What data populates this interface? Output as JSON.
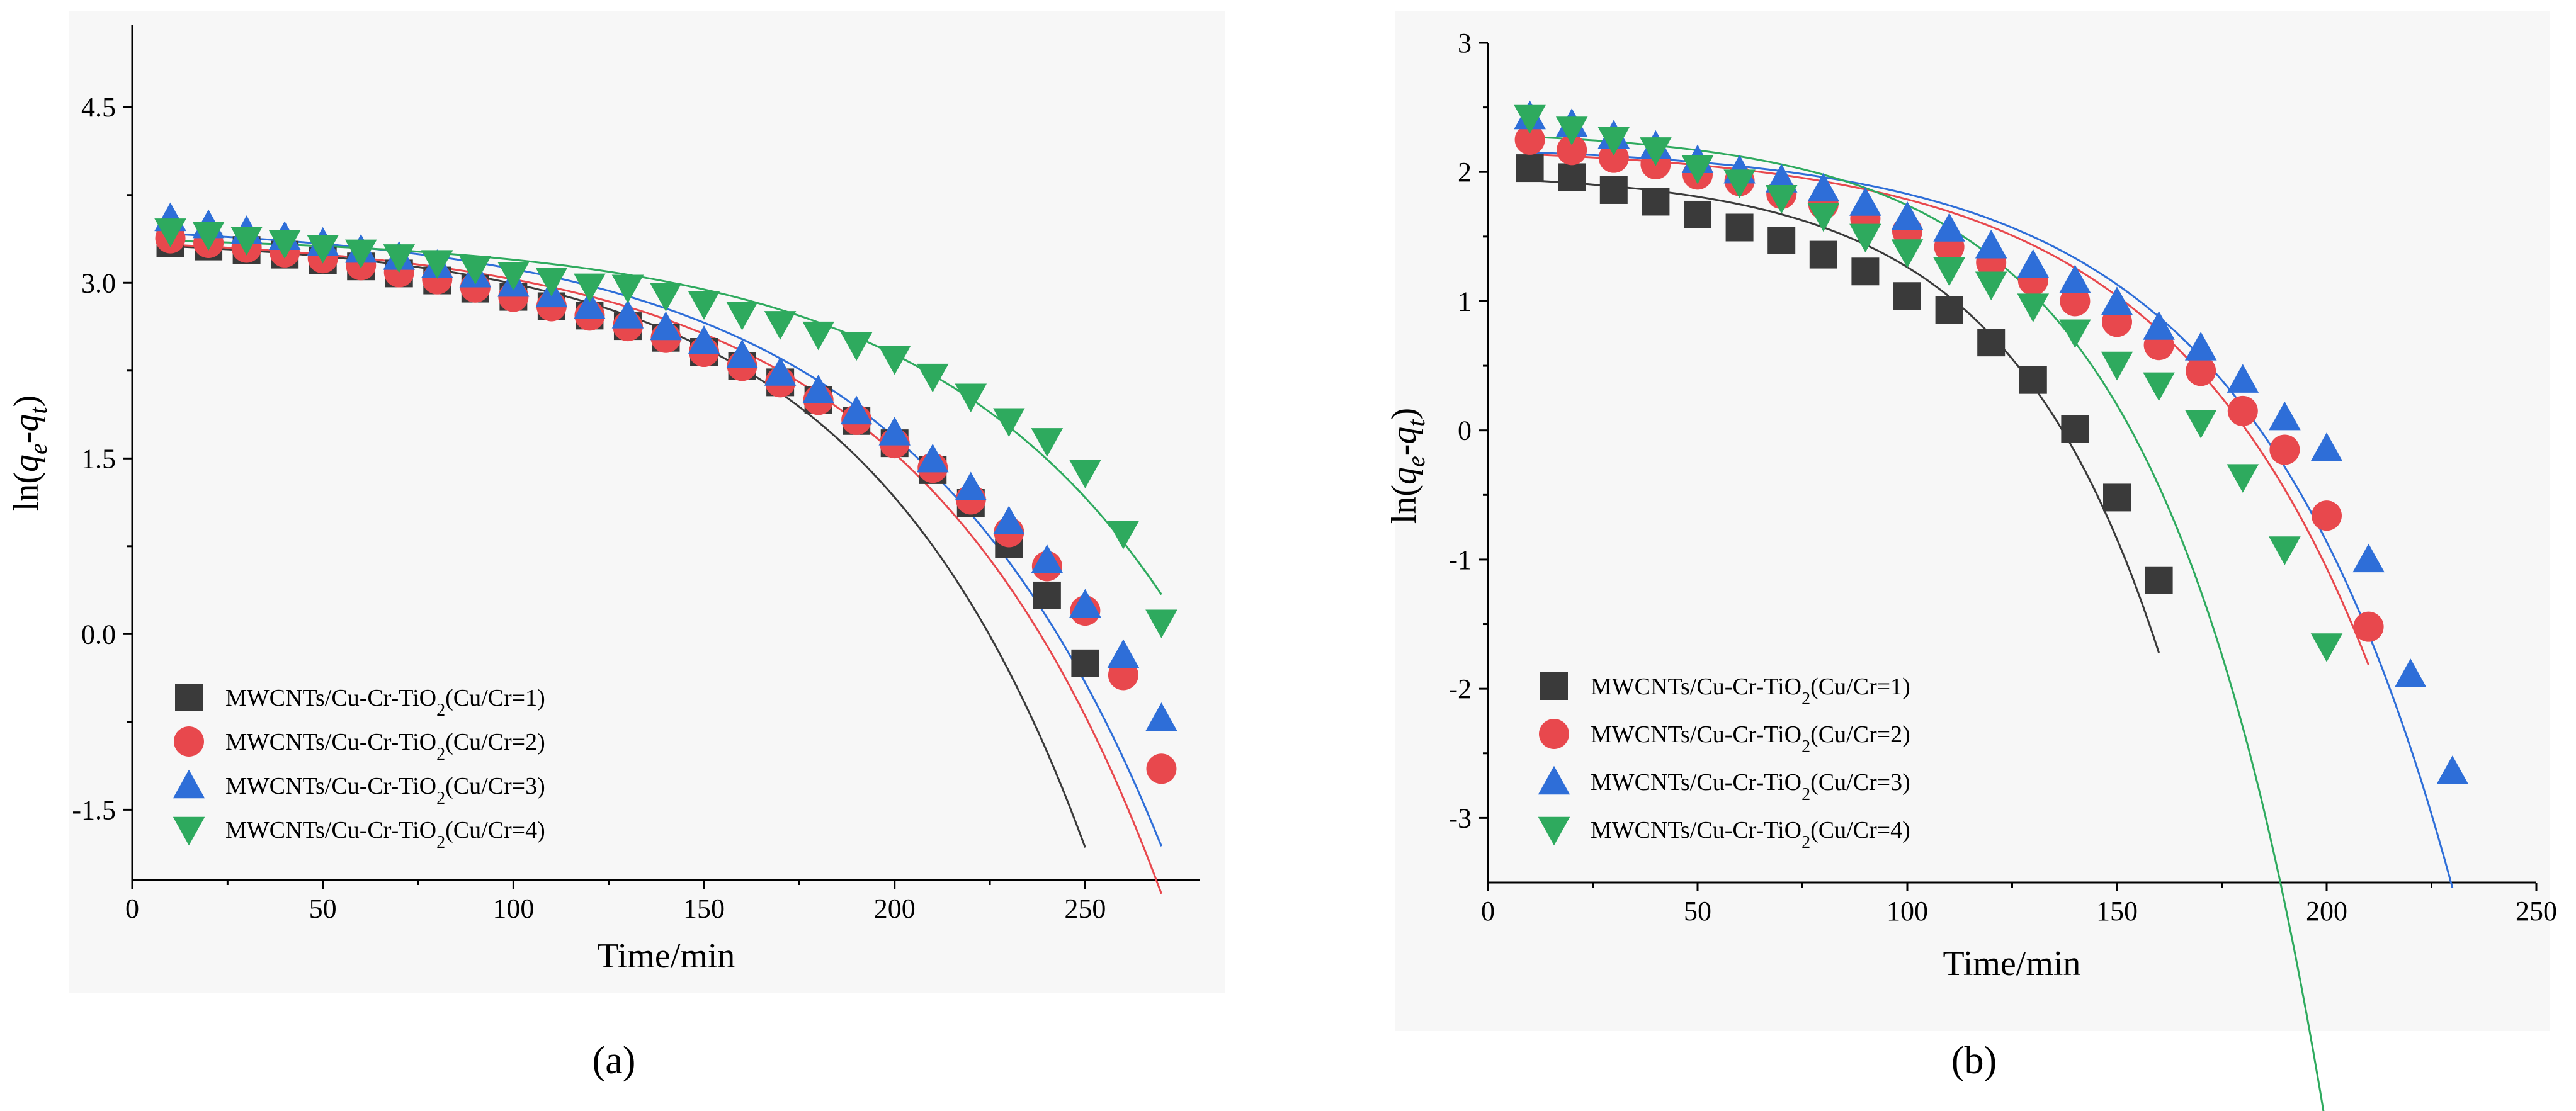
{
  "chart_data": [
    {
      "type": "scatter",
      "panel_label": "(a)",
      "xlabel": "Time/min",
      "ylabel_prefix": "ln(",
      "ylabel_q": "q",
      "ylabel_e": "e",
      "ylabel_minus": "-",
      "ylabel_t": "t",
      "ylabel_suffix": ")",
      "xlim": [
        0,
        280
      ],
      "ylim": [
        -2.1,
        5.2
      ],
      "xticks": [
        0,
        50,
        100,
        150,
        200,
        250
      ],
      "yticks": [
        -1.5,
        0.0,
        1.5,
        3.0,
        4.5
      ],
      "ytick_labels": [
        "-1.5",
        "0.0",
        "1.5",
        "3.0",
        "4.5"
      ],
      "legend_position": "bottom-left",
      "series": [
        {
          "name_prefix": "MWCNTs/Cu-Cr-TiO",
          "name_sub": "2",
          "name_suffix": "(Cu/Cr=1)",
          "marker": "square",
          "color": "#3a3a3a",
          "x": [
            10,
            20,
            30,
            40,
            50,
            60,
            70,
            80,
            90,
            100,
            110,
            120,
            130,
            140,
            150,
            160,
            170,
            180,
            190,
            200,
            210,
            220,
            230,
            240,
            250
          ],
          "y": [
            3.34,
            3.31,
            3.28,
            3.24,
            3.19,
            3.14,
            3.08,
            3.02,
            2.95,
            2.88,
            2.8,
            2.72,
            2.63,
            2.53,
            2.41,
            2.29,
            2.15,
            2.0,
            1.82,
            1.63,
            1.4,
            1.12,
            0.77,
            0.33,
            -0.25
          ],
          "fit": {
            "a": 3.4,
            "b": 0.0745,
            "c": 0.017
          }
        },
        {
          "name_prefix": "MWCNTs/Cu-Cr-TiO",
          "name_sub": "2",
          "name_suffix": "(Cu/Cr=2)",
          "marker": "circle",
          "color": "#e8484d",
          "x": [
            10,
            20,
            30,
            40,
            50,
            60,
            70,
            80,
            90,
            100,
            110,
            120,
            130,
            140,
            150,
            160,
            170,
            180,
            190,
            200,
            210,
            220,
            230,
            240,
            250,
            260,
            270
          ],
          "y": [
            3.38,
            3.34,
            3.3,
            3.26,
            3.21,
            3.15,
            3.09,
            3.03,
            2.96,
            2.88,
            2.8,
            2.72,
            2.63,
            2.53,
            2.41,
            2.29,
            2.15,
            2.0,
            1.83,
            1.63,
            1.42,
            1.15,
            0.87,
            0.58,
            0.2,
            -0.35,
            -1.15
          ],
          "fit": {
            "a": 3.42,
            "b": 0.0813,
            "c": 0.0157
          }
        },
        {
          "name_prefix": "MWCNTs/Cu-Cr-TiO",
          "name_sub": "2",
          "name_suffix": "(Cu/Cr=3)",
          "marker": "triangle-up",
          "color": "#2e6ed8",
          "x": [
            10,
            20,
            30,
            40,
            50,
            60,
            70,
            80,
            90,
            100,
            110,
            120,
            130,
            140,
            150,
            160,
            170,
            180,
            190,
            200,
            210,
            220,
            230,
            240,
            250,
            260,
            270
          ],
          "y": [
            3.55,
            3.49,
            3.44,
            3.39,
            3.34,
            3.28,
            3.22,
            3.15,
            3.07,
            2.99,
            2.9,
            2.8,
            2.72,
            2.62,
            2.5,
            2.38,
            2.23,
            2.08,
            1.9,
            1.72,
            1.49,
            1.25,
            0.96,
            0.63,
            0.25,
            -0.18,
            -0.72
          ],
          "fit": {
            "a": 3.52,
            "b": 0.088,
            "c": 0.0152
          }
        },
        {
          "name_prefix": "MWCNTs/Cu-Cr-TiO",
          "name_sub": "2",
          "name_suffix": "(Cu/Cr=4)",
          "marker": "triangle-down",
          "color": "#2eaa5e",
          "x": [
            10,
            20,
            30,
            40,
            50,
            60,
            70,
            80,
            90,
            100,
            110,
            120,
            130,
            140,
            150,
            160,
            170,
            180,
            190,
            200,
            210,
            220,
            230,
            240,
            250,
            260,
            270
          ],
          "y": [
            3.44,
            3.41,
            3.37,
            3.34,
            3.3,
            3.26,
            3.22,
            3.17,
            3.12,
            3.07,
            3.02,
            2.97,
            2.96,
            2.89,
            2.82,
            2.73,
            2.65,
            2.56,
            2.47,
            2.35,
            2.2,
            2.03,
            1.82,
            1.65,
            1.38,
            0.86,
            0.1
          ],
          "fit": {
            "a": 3.41,
            "b": 0.0443,
            "c": 0.0157
          }
        }
      ]
    },
    {
      "type": "scatter",
      "panel_label": "(b)",
      "xlabel": "Time/min",
      "ylabel_prefix": "ln(",
      "ylabel_q": "q",
      "ylabel_e": "e",
      "ylabel_minus": "-",
      "ylabel_t": "t",
      "ylabel_suffix": ")",
      "xlim": [
        0,
        250
      ],
      "ylim": [
        -3.5,
        3
      ],
      "xticks": [
        0,
        50,
        100,
        150,
        200,
        250
      ],
      "yticks": [
        -3,
        -2,
        -1,
        0,
        1,
        2,
        3
      ],
      "ytick_labels": [
        "-3",
        "-2",
        "-1",
        "0",
        "1",
        "2",
        "3"
      ],
      "legend_position": "bottom-left",
      "series": [
        {
          "name_prefix": "MWCNTs/Cu-Cr-TiO",
          "name_sub": "2",
          "name_suffix": "(Cu/Cr=1)",
          "marker": "square",
          "color": "#3a3a3a",
          "x": [
            10,
            20,
            30,
            40,
            50,
            60,
            70,
            80,
            90,
            100,
            110,
            120,
            130,
            140,
            150,
            160
          ],
          "y": [
            2.03,
            1.96,
            1.86,
            1.77,
            1.67,
            1.57,
            1.47,
            1.36,
            1.23,
            1.04,
            0.93,
            0.68,
            0.39,
            0.01,
            -0.52,
            -1.16
          ],
          "fit": {
            "a": 2.0,
            "b": 0.0495,
            "c": 0.027
          }
        },
        {
          "name_prefix": "MWCNTs/Cu-Cr-TiO",
          "name_sub": "2",
          "name_suffix": "(Cu/Cr=2)",
          "marker": "circle",
          "color": "#e8484d",
          "x": [
            10,
            20,
            30,
            40,
            50,
            60,
            70,
            80,
            90,
            100,
            110,
            120,
            130,
            140,
            150,
            160,
            170,
            180,
            190,
            200,
            210
          ],
          "y": [
            2.25,
            2.17,
            2.11,
            2.06,
            1.98,
            1.93,
            1.83,
            1.75,
            1.64,
            1.54,
            1.42,
            1.3,
            1.16,
            1.0,
            0.84,
            0.66,
            0.46,
            0.15,
            -0.15,
            -0.66,
            -1.52
          ],
          "fit": {
            "a": 2.2,
            "b": 0.052,
            "c": 0.0207
          }
        },
        {
          "name_prefix": "MWCNTs/Cu-Cr-TiO",
          "name_sub": "2",
          "name_suffix": "(Cu/Cr=3)",
          "marker": "triangle-up",
          "color": "#2e6ed8",
          "x": [
            10,
            20,
            30,
            40,
            50,
            60,
            70,
            80,
            90,
            100,
            110,
            120,
            130,
            140,
            150,
            160,
            170,
            180,
            190,
            200,
            210,
            220,
            230
          ],
          "y": [
            2.43,
            2.37,
            2.28,
            2.2,
            2.09,
            2.01,
            1.94,
            1.87,
            1.76,
            1.65,
            1.56,
            1.43,
            1.28,
            1.16,
            0.99,
            0.8,
            0.64,
            0.39,
            0.1,
            -0.14,
            -1.0,
            -1.89,
            -2.64
          ],
          "fit": {
            "a": 2.21,
            "b": 0.047,
            "c": 0.0209
          }
        },
        {
          "name_prefix": "MWCNTs/Cu-Cr-TiO",
          "name_sub": "2",
          "name_suffix": "(Cu/Cr=4)",
          "marker": "triangle-down",
          "color": "#2eaa5e",
          "x": [
            10,
            20,
            30,
            40,
            50,
            60,
            70,
            80,
            90,
            100,
            110,
            120,
            130,
            140,
            150,
            160,
            170,
            180,
            190,
            200
          ],
          "y": [
            2.42,
            2.33,
            2.25,
            2.17,
            2.03,
            1.92,
            1.8,
            1.66,
            1.5,
            1.38,
            1.24,
            1.13,
            0.96,
            0.76,
            0.51,
            0.35,
            0.06,
            -0.36,
            -0.92,
            -1.67
          ],
          "fit": {
            "a": 2.33,
            "b": 0.0445,
            "c": 0.0258
          }
        }
      ]
    }
  ]
}
